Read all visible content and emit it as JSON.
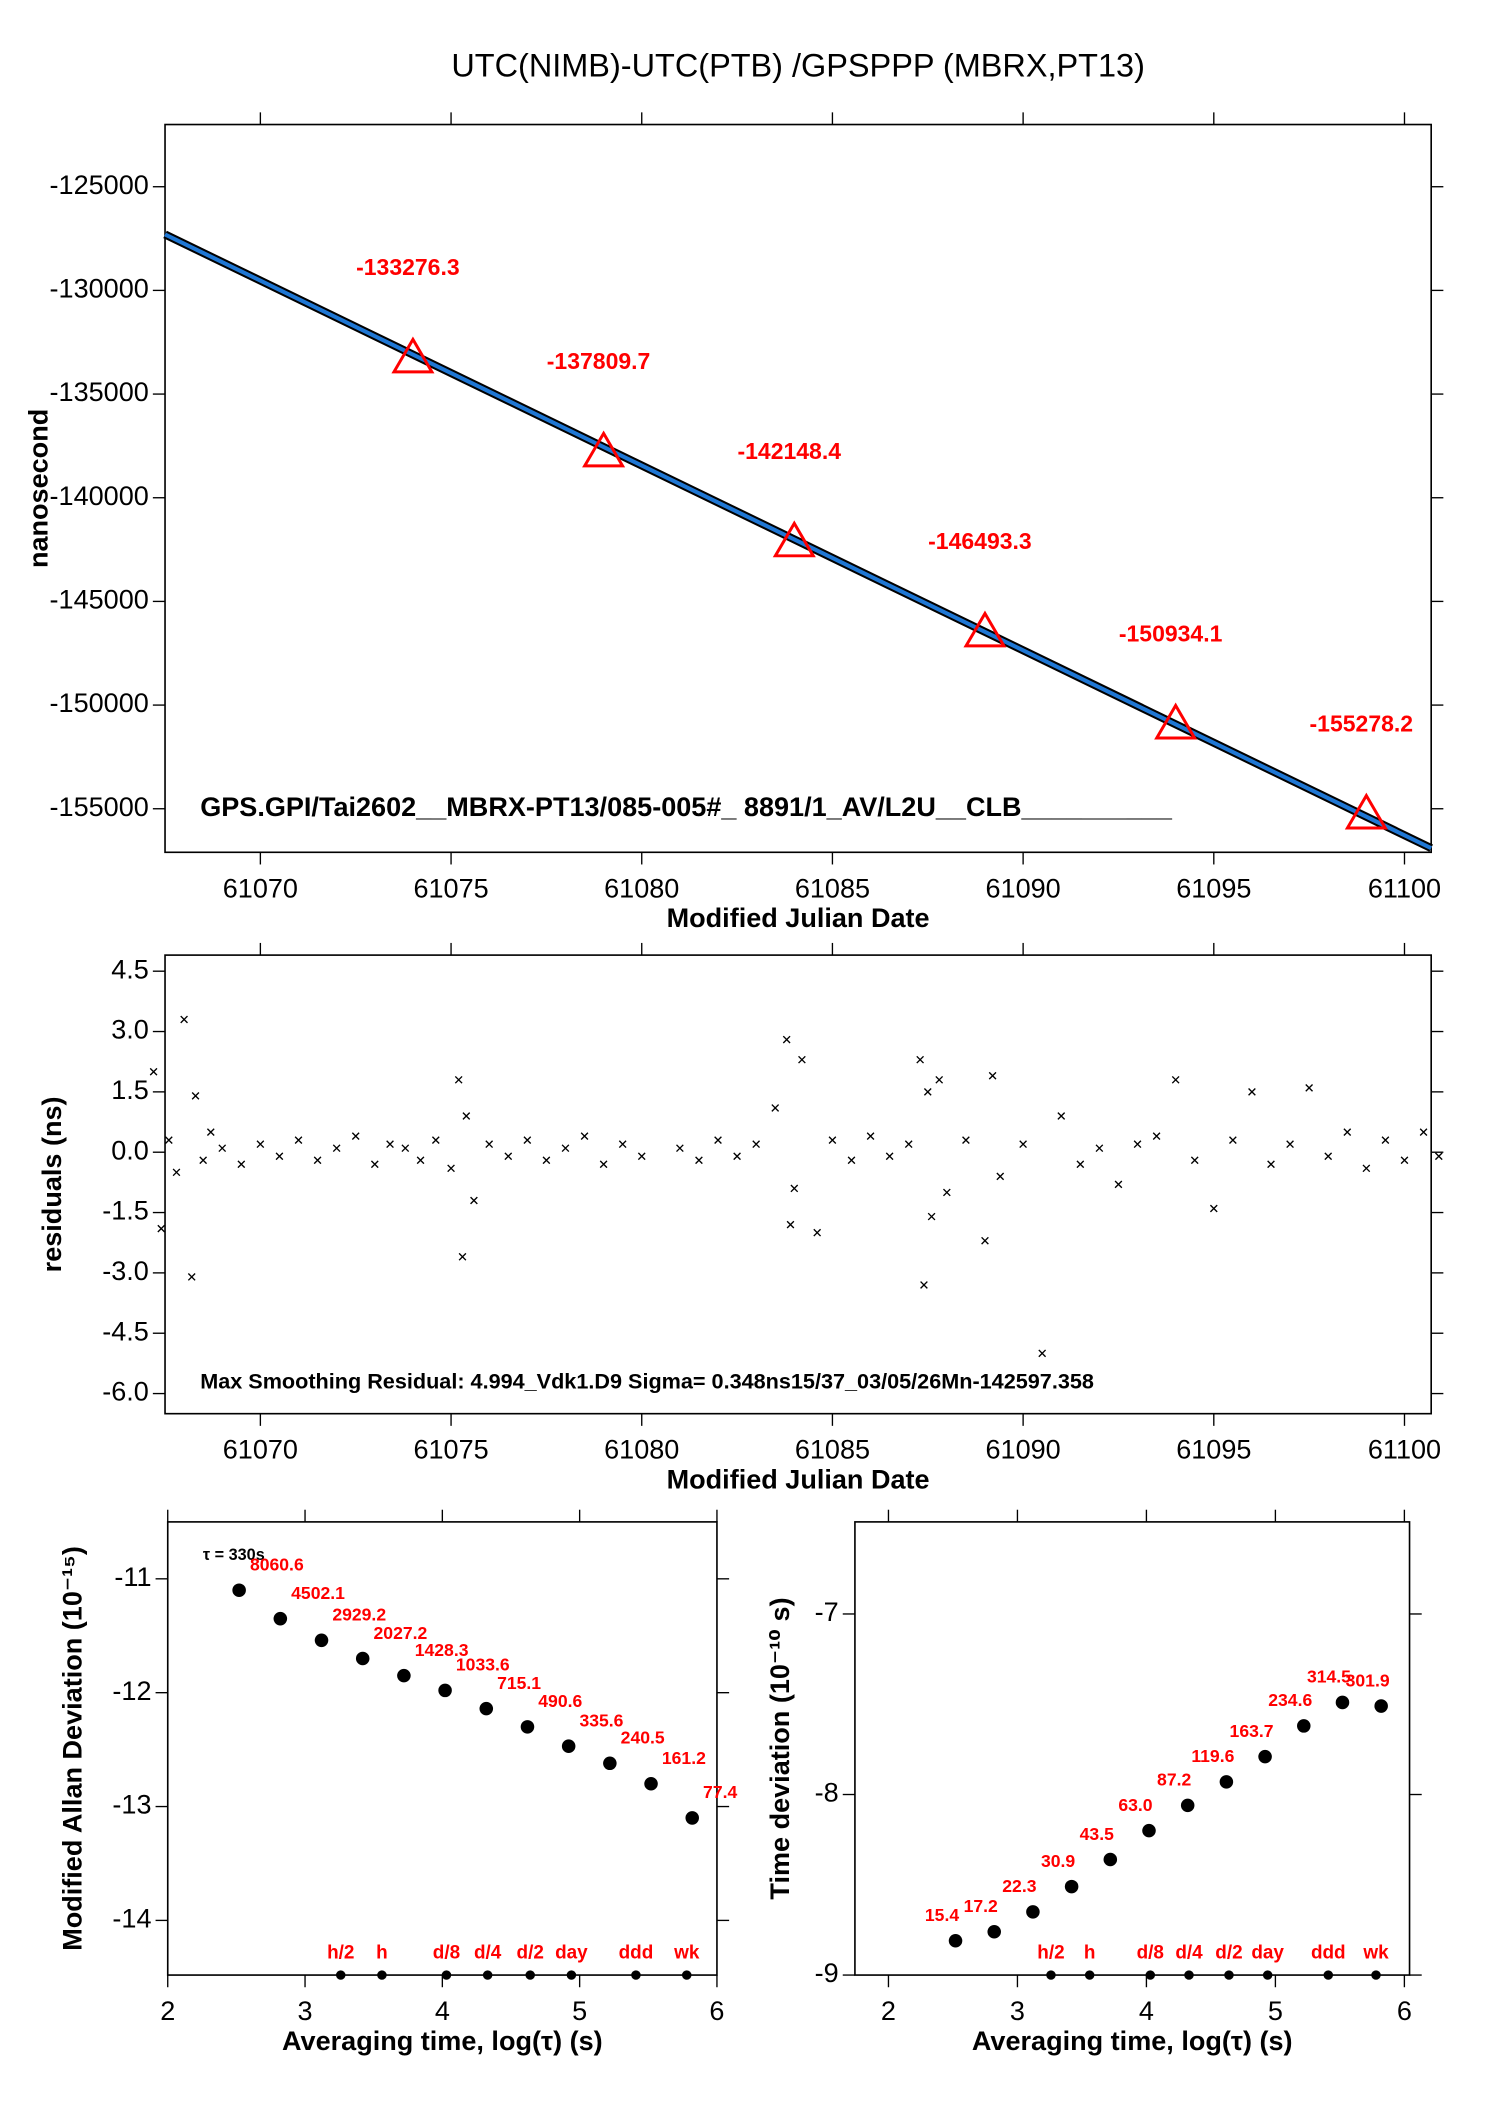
{
  "chart_data": [
    {
      "type": "line",
      "title": "UTC(NIMB)-UTC(PTB)  /GPSPPP  (MBRX,PT13)",
      "ylabel": "nanosecond",
      "xlabel": "Modified Julian Date",
      "annotation": "GPS.GPI/Tai2602__MBRX-PT13/085-005#_  8891/1_AV/L2U__CLB__________",
      "xlim": [
        61067.5,
        61100.7
      ],
      "xticks": [
        61070,
        61075,
        61080,
        61085,
        61090,
        61095,
        61100
      ],
      "ylim": [
        -157100,
        -122000
      ],
      "yticks": [
        -125000,
        -130000,
        -135000,
        -140000,
        -145000,
        -150000,
        -155000
      ],
      "series": [
        {
          "marker": "line",
          "color": "#1f77d4",
          "x": [
            61067.5,
            61100.7
          ],
          "values": [
            -127300,
            -156900
          ]
        },
        {
          "marker": "triangle",
          "color": "#ff0000",
          "show_values": true,
          "x": [
            61074,
            61079,
            61084,
            61089,
            61094,
            61099
          ],
          "values": [
            -133276.3,
            -137809.7,
            -142148.4,
            -146493.3,
            -150934.1,
            -155278.2
          ]
        }
      ]
    },
    {
      "type": "scatter",
      "ylabel": "residuals (ns)",
      "xlabel": "Modified Julian Date",
      "annotation": "Max Smoothing Residual: 4.994_Vdk1.D9  Sigma= 0.348ns15/37_03/05/26Mn-142597.358",
      "xlim": [
        61067.5,
        61100.7
      ],
      "xticks": [
        61070,
        61075,
        61080,
        61085,
        61090,
        61095,
        61100
      ],
      "ylim": [
        -6.5,
        4.9
      ],
      "yticks": [
        4.5,
        {
          "value": 3,
          "label": "3.0"
        },
        1.5,
        {
          "value": 0,
          "label": "0.0"
        },
        -1.5,
        {
          "value": -3,
          "label": "-3.0"
        },
        -4.5,
        {
          "value": -6,
          "label": "-6.0"
        }
      ],
      "series": [
        {
          "marker": "x",
          "color": "#000000",
          "x": [
            61067.2,
            61067.4,
            61067.6,
            61067.8,
            61068.0,
            61068.2,
            61068.3,
            61068.5,
            61068.7,
            61069.0,
            61069.5,
            61070.0,
            61070.5,
            61071.0,
            61071.5,
            61072.0,
            61072.5,
            61073.0,
            61073.4,
            61073.8,
            61074.2,
            61074.6,
            61075.0,
            61075.2,
            61075.3,
            61075.4,
            61075.6,
            61076.0,
            61076.5,
            61077.0,
            61077.5,
            61078.0,
            61078.5,
            61079.0,
            61079.5,
            61080.0,
            61081.0,
            61081.5,
            61082.0,
            61082.5,
            61083.0,
            61083.5,
            61083.8,
            61083.9,
            61084.0,
            61084.2,
            61084.6,
            61085.0,
            61085.5,
            61086.0,
            61086.5,
            61087.0,
            61087.3,
            61087.4,
            61087.5,
            61087.6,
            61087.8,
            61088.0,
            61088.5,
            61089.0,
            61089.2,
            61089.4,
            61090.0,
            61090.5,
            61091.0,
            61091.5,
            61092.0,
            61092.5,
            61093.0,
            61093.5,
            61094.0,
            61094.5,
            61095.0,
            61095.5,
            61096.0,
            61096.5,
            61097.0,
            61097.5,
            61098.0,
            61098.5,
            61099.0,
            61099.5,
            61100.0,
            61100.5,
            61100.9
          ],
          "values": [
            2.0,
            -1.9,
            0.3,
            -0.5,
            3.3,
            -3.1,
            1.4,
            -0.2,
            0.5,
            0.1,
            -0.3,
            0.2,
            -0.1,
            0.3,
            -0.2,
            0.1,
            0.4,
            -0.3,
            0.2,
            0.1,
            -0.2,
            0.3,
            -0.4,
            1.8,
            -2.6,
            0.9,
            -1.2,
            0.2,
            -0.1,
            0.3,
            -0.2,
            0.1,
            0.4,
            -0.3,
            0.2,
            -0.1,
            0.1,
            -0.2,
            0.3,
            -0.1,
            0.2,
            1.1,
            2.8,
            -1.8,
            -0.9,
            2.3,
            -2.0,
            0.3,
            -0.2,
            0.4,
            -0.1,
            0.2,
            2.3,
            -3.3,
            1.5,
            -1.6,
            1.8,
            -1.0,
            0.3,
            -2.2,
            1.9,
            -0.6,
            0.2,
            -5.0,
            0.9,
            -0.3,
            0.1,
            -0.8,
            0.2,
            0.4,
            1.8,
            -0.2,
            -1.4,
            0.3,
            1.5,
            -0.3,
            0.2,
            1.6,
            -0.1,
            0.5,
            -0.4,
            0.3,
            -0.2,
            0.5,
            -0.1
          ]
        }
      ]
    },
    {
      "type": "scatter",
      "ylabel": "Modified Allan Deviation (10⁻¹⁵)",
      "xlabel": "Averaging time, log(τ) (s)",
      "note": "τ = 330s",
      "xlim": [
        2,
        6
      ],
      "xticks": [
        2,
        3,
        4,
        5,
        6
      ],
      "ylim": [
        -14.48,
        -10.5
      ],
      "yticks": [
        -11,
        -12,
        -13,
        -14
      ],
      "series": [
        {
          "marker": "dot",
          "color": "#000000",
          "x": [
            2.52,
            2.82,
            3.12,
            3.42,
            3.72,
            4.02,
            4.32,
            4.62,
            4.92,
            5.22,
            5.52,
            5.82
          ],
          "values": [
            -11.1,
            -11.35,
            -11.54,
            -11.7,
            -11.85,
            -11.98,
            -12.14,
            -12.3,
            -12.47,
            -12.62,
            -12.8,
            -13.1
          ],
          "point_labels": [
            "8060.6",
            "4502.1",
            "2929.2",
            "2027.2",
            "1428.3",
            "1033.6",
            "715.1",
            "490.6",
            "335.6",
            "240.5",
            "161.2",
            "77.4"
          ]
        }
      ],
      "marker_x": [
        3.26,
        3.56,
        4.03,
        4.33,
        4.64,
        4.94,
        5.41,
        5.78
      ],
      "marker_labels": [
        "h/2",
        "h",
        "d/8",
        "d/4",
        "d/2",
        "day",
        "ddd",
        "wk"
      ]
    },
    {
      "type": "scatter",
      "ylabel": "Time deviation (10⁻¹⁰ s)",
      "xlabel": "Averaging time, log(τ) (s)",
      "xlim": [
        1.74,
        6.04
      ],
      "xticks": [
        2,
        3,
        4,
        5,
        6
      ],
      "ylim": [
        -9,
        -6.49
      ],
      "yticks": [
        -7,
        -8,
        -9
      ],
      "series": [
        {
          "marker": "dot",
          "color": "#000000",
          "x": [
            2.52,
            2.82,
            3.12,
            3.42,
            3.72,
            4.02,
            4.32,
            4.62,
            4.92,
            5.22,
            5.52,
            5.82
          ],
          "values": [
            -8.81,
            -8.76,
            -8.65,
            -8.51,
            -8.36,
            -8.2,
            -8.06,
            -7.93,
            -7.79,
            -7.62,
            -7.49,
            -7.51
          ],
          "point_labels": [
            "15.4",
            "17.2",
            "22.3",
            "30.9",
            "43.5",
            "63.0",
            "87.2",
            "119.6",
            "163.7",
            "234.6",
            "314.5",
            "301.9"
          ]
        }
      ],
      "marker_x": [
        3.26,
        3.56,
        4.03,
        4.33,
        4.64,
        4.94,
        5.41,
        5.78
      ],
      "marker_labels": [
        "h/2",
        "h",
        "d/8",
        "d/4",
        "d/2",
        "day",
        "ddd",
        "wk"
      ]
    }
  ]
}
